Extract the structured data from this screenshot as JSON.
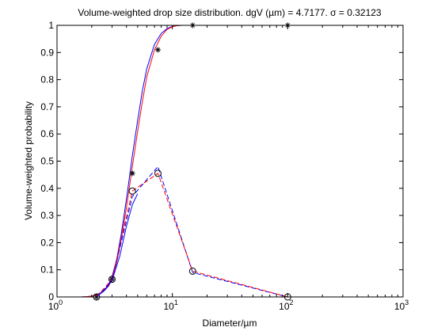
{
  "chart_data": {
    "type": "line",
    "title": "Volume-weighted drop size distribution. dgV (µm) = 4.7177. σ = 0.32123",
    "xlabel": "Diameter/µm",
    "ylabel": "Volume-weighted probability",
    "xscale": "log",
    "xlim": [
      1,
      1000
    ],
    "ylim": [
      0,
      1
    ],
    "x_ticks": [
      {
        "value": 1,
        "base": "10",
        "exp": "0"
      },
      {
        "value": 10,
        "base": "10",
        "exp": "1"
      },
      {
        "value": 100,
        "base": "10",
        "exp": "2"
      },
      {
        "value": 1000,
        "base": "10",
        "exp": "3"
      }
    ],
    "y_ticks": [
      {
        "value": 0,
        "label": "0"
      },
      {
        "value": 0.1,
        "label": "0.1"
      },
      {
        "value": 0.2,
        "label": "0.2"
      },
      {
        "value": 0.3,
        "label": "0.3"
      },
      {
        "value": 0.4,
        "label": "0.4"
      },
      {
        "value": 0.5,
        "label": "0.5"
      },
      {
        "value": 0.6,
        "label": "0.6"
      },
      {
        "value": 0.7,
        "label": "0.7"
      },
      {
        "value": 0.8,
        "label": "0.8"
      },
      {
        "value": 0.9,
        "label": "0.9"
      },
      {
        "value": 1,
        "label": "1"
      }
    ],
    "grid": false,
    "legend": "none",
    "series": [
      {
        "style": "solid",
        "color": "#0000ff",
        "marker": "none",
        "x": [
          1.6,
          1.8,
          2.0,
          2.2,
          2.5,
          2.8,
          3.0,
          3.3,
          3.6,
          4.0,
          4.5,
          5.0,
          5.5,
          6.0,
          7.0,
          8.0,
          9.0,
          10,
          11,
          12,
          14,
          20,
          30,
          50,
          100
        ],
        "y": [
          0.0,
          0.001,
          0.003,
          0.008,
          0.02,
          0.045,
          0.075,
          0.14,
          0.23,
          0.36,
          0.52,
          0.65,
          0.76,
          0.84,
          0.93,
          0.97,
          0.988,
          0.996,
          0.999,
          1.0,
          1.0,
          1.0,
          1.0,
          1.0,
          1.0
        ]
      },
      {
        "style": "solid",
        "color": "#ff0000",
        "marker": "none",
        "x": [
          1.6,
          1.8,
          2.0,
          2.2,
          2.5,
          2.8,
          3.0,
          3.3,
          3.6,
          4.0,
          4.5,
          5.0,
          5.5,
          6.0,
          7.0,
          8.0,
          9.0,
          10,
          11,
          12,
          14,
          20,
          30,
          50,
          100
        ],
        "y": [
          0.0,
          0.001,
          0.003,
          0.007,
          0.018,
          0.04,
          0.068,
          0.13,
          0.21,
          0.33,
          0.48,
          0.61,
          0.72,
          0.81,
          0.91,
          0.96,
          0.985,
          0.995,
          0.999,
          1.0,
          1.0,
          1.0,
          1.0,
          1.0,
          1.0
        ]
      },
      {
        "style": "markers",
        "color": "#000000",
        "marker": "star",
        "x": [
          2.2,
          3.0,
          4.5,
          7.5,
          15,
          100
        ],
        "y": [
          0.0,
          0.065,
          0.455,
          0.91,
          1.0,
          1.0
        ]
      },
      {
        "style": "dashed",
        "color": "#0000ff",
        "marker": "none",
        "x": [
          2.2,
          3.0,
          4.5,
          7.5,
          15,
          100
        ],
        "y": [
          0.0,
          0.06,
          0.37,
          0.48,
          0.09,
          0.0
        ]
      },
      {
        "style": "dashed",
        "color": "#ff0000",
        "marker": "none",
        "x": [
          2.2,
          3.0,
          4.5,
          7.5,
          15,
          100
        ],
        "y": [
          0.0,
          0.065,
          0.39,
          0.455,
          0.095,
          0.0
        ]
      },
      {
        "style": "markers",
        "color": "#000000",
        "marker": "circle",
        "x": [
          2.2,
          3.0,
          4.5,
          7.5,
          15,
          100
        ],
        "y": [
          0.0,
          0.065,
          0.39,
          0.455,
          0.095,
          0.0
        ]
      },
      {
        "style": "solid",
        "color": "#0000ff",
        "marker": "none",
        "x": [
          2.2,
          2.6,
          3.0,
          3.5,
          4.0,
          4.5,
          5.0
        ],
        "y": [
          0.0,
          0.025,
          0.06,
          0.15,
          0.26,
          0.34,
          0.38
        ]
      }
    ]
  }
}
